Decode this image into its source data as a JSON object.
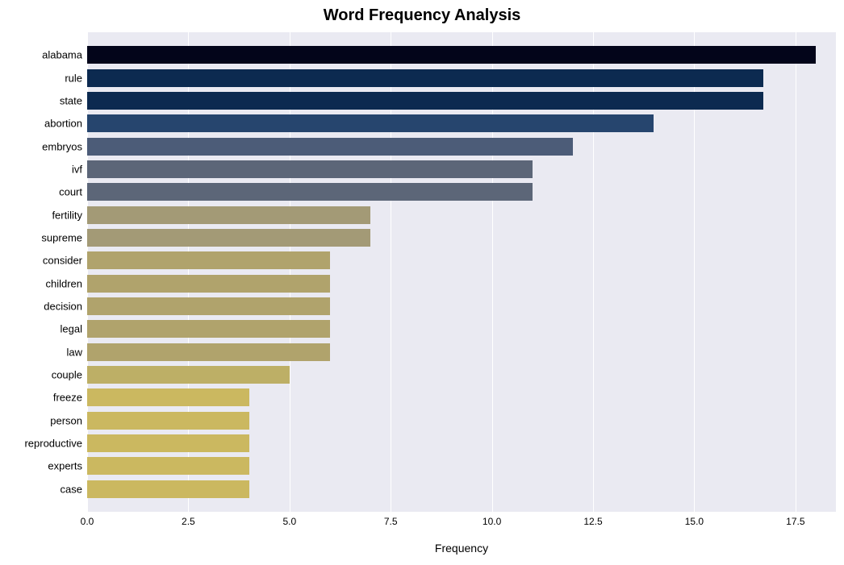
{
  "chart": {
    "type": "bar-horizontal",
    "title": "Word Frequency Analysis",
    "title_fontsize": 20,
    "title_fontweight": 700,
    "title_color": "#000000",
    "xlabel": "Frequency",
    "xlabel_fontsize": 14,
    "xlabel_color": "#000000",
    "plot_background": "#eaeaf2",
    "grid_color": "#ffffff",
    "bar_height_ratio": 0.78,
    "xlim": [
      0,
      18.5
    ],
    "xticks": [
      0.0,
      2.5,
      5.0,
      7.5,
      10.0,
      12.5,
      15.0,
      17.5
    ],
    "xtick_labels": [
      "0.0",
      "2.5",
      "5.0",
      "7.5",
      "10.0",
      "12.5",
      "15.0",
      "17.5"
    ],
    "ytick_fontsize": 13,
    "ytick_color": "#000000",
    "xtick_fontsize": 12,
    "xtick_color": "#000000",
    "categories": [
      "alabama",
      "rule",
      "state",
      "abortion",
      "embryos",
      "ivf",
      "court",
      "fertility",
      "supreme",
      "consider",
      "children",
      "decision",
      "legal",
      "law",
      "couple",
      "freeze",
      "person",
      "reproductive",
      "experts",
      "case"
    ],
    "values": [
      18,
      16.7,
      16.7,
      14,
      12,
      11,
      11,
      7,
      7,
      6,
      6,
      6,
      6,
      6,
      5,
      4,
      4,
      4,
      4,
      4
    ],
    "bar_colors": [
      "#03051a",
      "#0c2a50",
      "#0c2a50",
      "#26456e",
      "#4c5c78",
      "#5c6678",
      "#5c6678",
      "#a39a76",
      "#a39a76",
      "#b0a36c",
      "#b0a36c",
      "#b0a36c",
      "#b0a36c",
      "#b0a36c",
      "#bdaf66",
      "#cbb860",
      "#cbb860",
      "#cbb860",
      "#cbb860",
      "#cbb860"
    ]
  }
}
